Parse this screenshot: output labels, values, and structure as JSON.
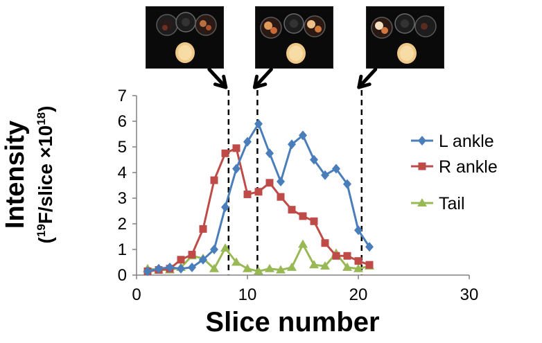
{
  "chart_data": {
    "type": "line",
    "title": "",
    "xlabel": "Slice number",
    "ylabel": "Intensity",
    "ylabel_sub": {
      "open": "(",
      "sup1": "19",
      "mid": "F/slice ×10",
      "sup2": "18",
      "close": ")"
    },
    "xlim": [
      0,
      30
    ],
    "ylim": [
      0,
      7
    ],
    "xticks": [
      0,
      10,
      20,
      30
    ],
    "yticks": [
      0,
      1,
      2,
      3,
      4,
      5,
      6,
      7
    ],
    "grid": false,
    "legend_position": "right",
    "series": [
      {
        "name": "L ankle",
        "color": "#4a7ebb",
        "marker": "diamond",
        "x": [
          1,
          2,
          3,
          4,
          5,
          6,
          7,
          8,
          9,
          10,
          11,
          12,
          13,
          14,
          15,
          16,
          17,
          18,
          19,
          20,
          21
        ],
        "y": [
          0.15,
          0.25,
          0.3,
          0.25,
          0.3,
          0.6,
          1.0,
          2.65,
          4.15,
          5.2,
          5.9,
          4.75,
          3.65,
          5.1,
          5.45,
          4.5,
          3.9,
          4.15,
          3.55,
          1.75,
          1.1
        ]
      },
      {
        "name": "R ankle",
        "color": "#be4b48",
        "marker": "square",
        "x": [
          1,
          2,
          3,
          4,
          5,
          6,
          7,
          8,
          9,
          10,
          11,
          12,
          13,
          14,
          15,
          16,
          17,
          18,
          19,
          20,
          21
        ],
        "y": [
          0.15,
          0.2,
          0.25,
          0.6,
          0.8,
          1.8,
          3.7,
          4.75,
          4.95,
          3.15,
          3.25,
          3.6,
          3.05,
          2.55,
          2.3,
          2.1,
          1.25,
          0.75,
          0.75,
          0.55,
          0.4
        ]
      },
      {
        "name": "Tail",
        "color": "#98b954",
        "marker": "triangle",
        "x": [
          1,
          2,
          3,
          4,
          5,
          6,
          7,
          8,
          9,
          10,
          11,
          12,
          13,
          14,
          15,
          16,
          17,
          18,
          19,
          20,
          21
        ],
        "y": [
          0.25,
          0.2,
          0.2,
          0.3,
          0.75,
          0.65,
          0.25,
          1.05,
          0.5,
          0.25,
          0.15,
          0.25,
          0.2,
          0.3,
          1.2,
          0.4,
          0.35,
          0.85,
          0.3,
          0.25,
          0.35
        ]
      }
    ],
    "annotations": {
      "dashed_lines_x": [
        8.3,
        10.9,
        20.3
      ],
      "images": 3
    }
  }
}
